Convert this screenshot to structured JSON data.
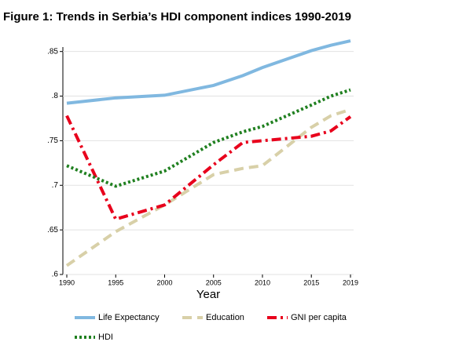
{
  "chart_data": {
    "type": "line",
    "title": "Figure 1: Trends in Serbia’s HDI component indices 1990-2019",
    "x_label": "Year",
    "x": [
      1990,
      1995,
      2000,
      2005,
      2008,
      2010,
      2015,
      2017,
      2019
    ],
    "series": [
      {
        "name": "Life Expectancy",
        "color": "#80b8e0",
        "style": "solid",
        "values": [
          0.792,
          0.798,
          0.801,
          0.812,
          0.823,
          0.832,
          0.851,
          0.857,
          0.862
        ]
      },
      {
        "name": "Education",
        "color": "#d8d0a8",
        "style": "dashed",
        "values": [
          0.61,
          0.648,
          0.678,
          0.712,
          0.719,
          0.722,
          0.765,
          0.778,
          0.785
        ]
      },
      {
        "name": "GNI per capita",
        "color": "#e8001c",
        "style": "dashdot",
        "values": [
          0.778,
          0.662,
          0.678,
          0.723,
          0.748,
          0.75,
          0.755,
          0.761,
          0.777
        ]
      },
      {
        "name": "HDI",
        "color": "#208020",
        "style": "dotted",
        "values": [
          0.722,
          0.699,
          0.716,
          0.748,
          0.76,
          0.766,
          0.79,
          0.8,
          0.807
        ]
      }
    ],
    "xlim": [
      1990,
      2019
    ],
    "xticks": [
      1990,
      1995,
      2000,
      2005,
      2010,
      2015,
      2019
    ],
    "ylim": [
      0.6,
      0.855
    ],
    "yticks": [
      {
        "value": 0.6,
        "label": ".6"
      },
      {
        "value": 0.65,
        "label": ".65"
      },
      {
        "value": 0.7,
        "label": ".7"
      },
      {
        "value": 0.75,
        "label": ".75"
      },
      {
        "value": 0.8,
        "label": ".8"
      },
      {
        "value": 0.85,
        "label": ".85"
      }
    ],
    "grid": true,
    "legend": "bottom"
  }
}
